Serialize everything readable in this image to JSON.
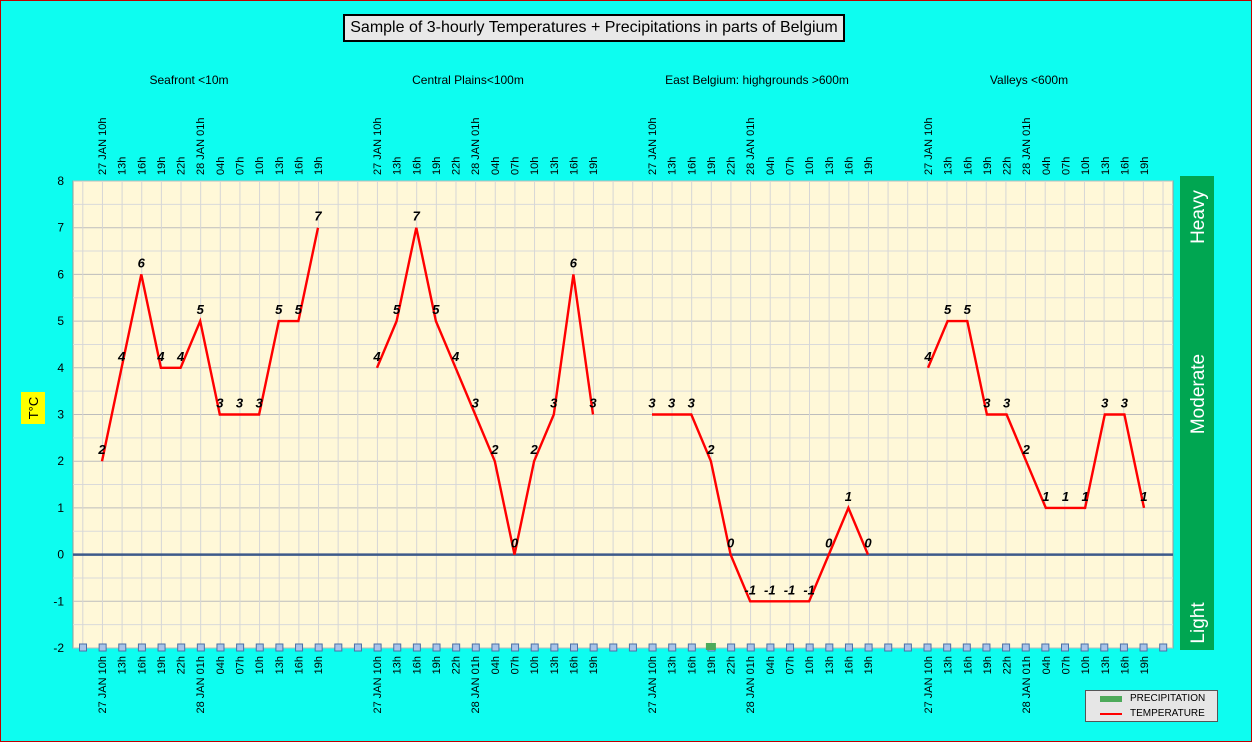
{
  "chart_data": {
    "type": "line",
    "title": "Sample of 3-hourly Temperatures + Precipitations in parts of Belgium",
    "ylabel": "T°C",
    "ylim": [
      -2,
      8
    ],
    "y_ticks": [
      "8",
      "7",
      "6",
      "5",
      "4",
      "3",
      "2",
      "1",
      "0",
      "-1",
      "-2"
    ],
    "grid": true,
    "legend_position": "bottom-right",
    "legend": [
      {
        "label": "PRECIPITATION",
        "color": "#4daa5a"
      },
      {
        "label": "TEMPERATURE",
        "color": "#ff0000"
      }
    ],
    "intensity_bar": {
      "labels": [
        "Heavy",
        "Moderate",
        "Light"
      ],
      "color": "#00a651"
    },
    "regions": [
      {
        "name": "Seafront <10m",
        "ticks": [
          "27 JAN 10h",
          "13h",
          "16h",
          "19h",
          "22h",
          "28 JAN 01h",
          "04h",
          "07h",
          "10h",
          "13h",
          "16h",
          "19h"
        ],
        "temperature": [
          2,
          4,
          6,
          4,
          4,
          5,
          3,
          3,
          3,
          5,
          5,
          7
        ],
        "labels": [
          "2",
          "4",
          "6",
          "4",
          "4",
          "5",
          "3",
          "3",
          "3",
          "5",
          "5",
          "7"
        ],
        "precipitation": [
          0,
          0,
          0,
          0,
          0,
          0,
          0,
          0,
          0,
          0,
          0,
          0
        ]
      },
      {
        "name": "Central Plains<100m",
        "ticks": [
          "27 JAN 10h",
          "13h",
          "16h",
          "19h",
          "22h",
          "28 JAN 01h",
          "04h",
          "07h",
          "10h",
          "13h",
          "16h",
          "19h"
        ],
        "temperature": [
          4,
          5,
          7,
          5,
          4,
          3,
          2,
          0,
          2,
          3,
          6,
          3
        ],
        "labels": [
          "4",
          "5",
          "7",
          "5",
          "4",
          "3",
          "2",
          "0",
          "2",
          "3",
          "6",
          "3"
        ],
        "precipitation": [
          0,
          0,
          0,
          0,
          0,
          0,
          0,
          0,
          0,
          0,
          0,
          0
        ]
      },
      {
        "name": "East Belgium:    highgrounds >600m",
        "ticks": [
          "27 JAN 10h",
          "13h",
          "16h",
          "19h",
          "22h",
          "28 JAN 01h",
          "04h",
          "07h",
          "10h",
          "13h",
          "16h",
          "19h"
        ],
        "temperature": [
          3,
          3,
          3,
          2,
          0,
          -1,
          -1,
          -1,
          -1,
          0,
          1,
          0
        ],
        "labels": [
          "3",
          "3",
          "3",
          "2",
          "0",
          "-1",
          "-1",
          "-1",
          "-1",
          "0",
          "1",
          "0"
        ],
        "precipitation": [
          0,
          0,
          0,
          0.15,
          0,
          0,
          0,
          0,
          0,
          0,
          0,
          0
        ]
      },
      {
        "name": "Valleys <600m",
        "ticks": [
          "27 JAN 10h",
          "13h",
          "16h",
          "19h",
          "22h",
          "28 JAN 01h",
          "04h",
          "07h",
          "10h",
          "13h",
          "16h",
          "19h"
        ],
        "temperature": [
          4,
          5,
          5,
          3,
          3,
          2,
          1,
          1,
          1,
          3,
          3,
          1
        ],
        "labels": [
          "4",
          "5",
          "5",
          "3",
          "3",
          "2",
          "1",
          "1",
          "1",
          "3",
          "3",
          "1"
        ],
        "precipitation": [
          0,
          0,
          0,
          0,
          0,
          0,
          0,
          0,
          0,
          0,
          0,
          0
        ]
      }
    ]
  }
}
